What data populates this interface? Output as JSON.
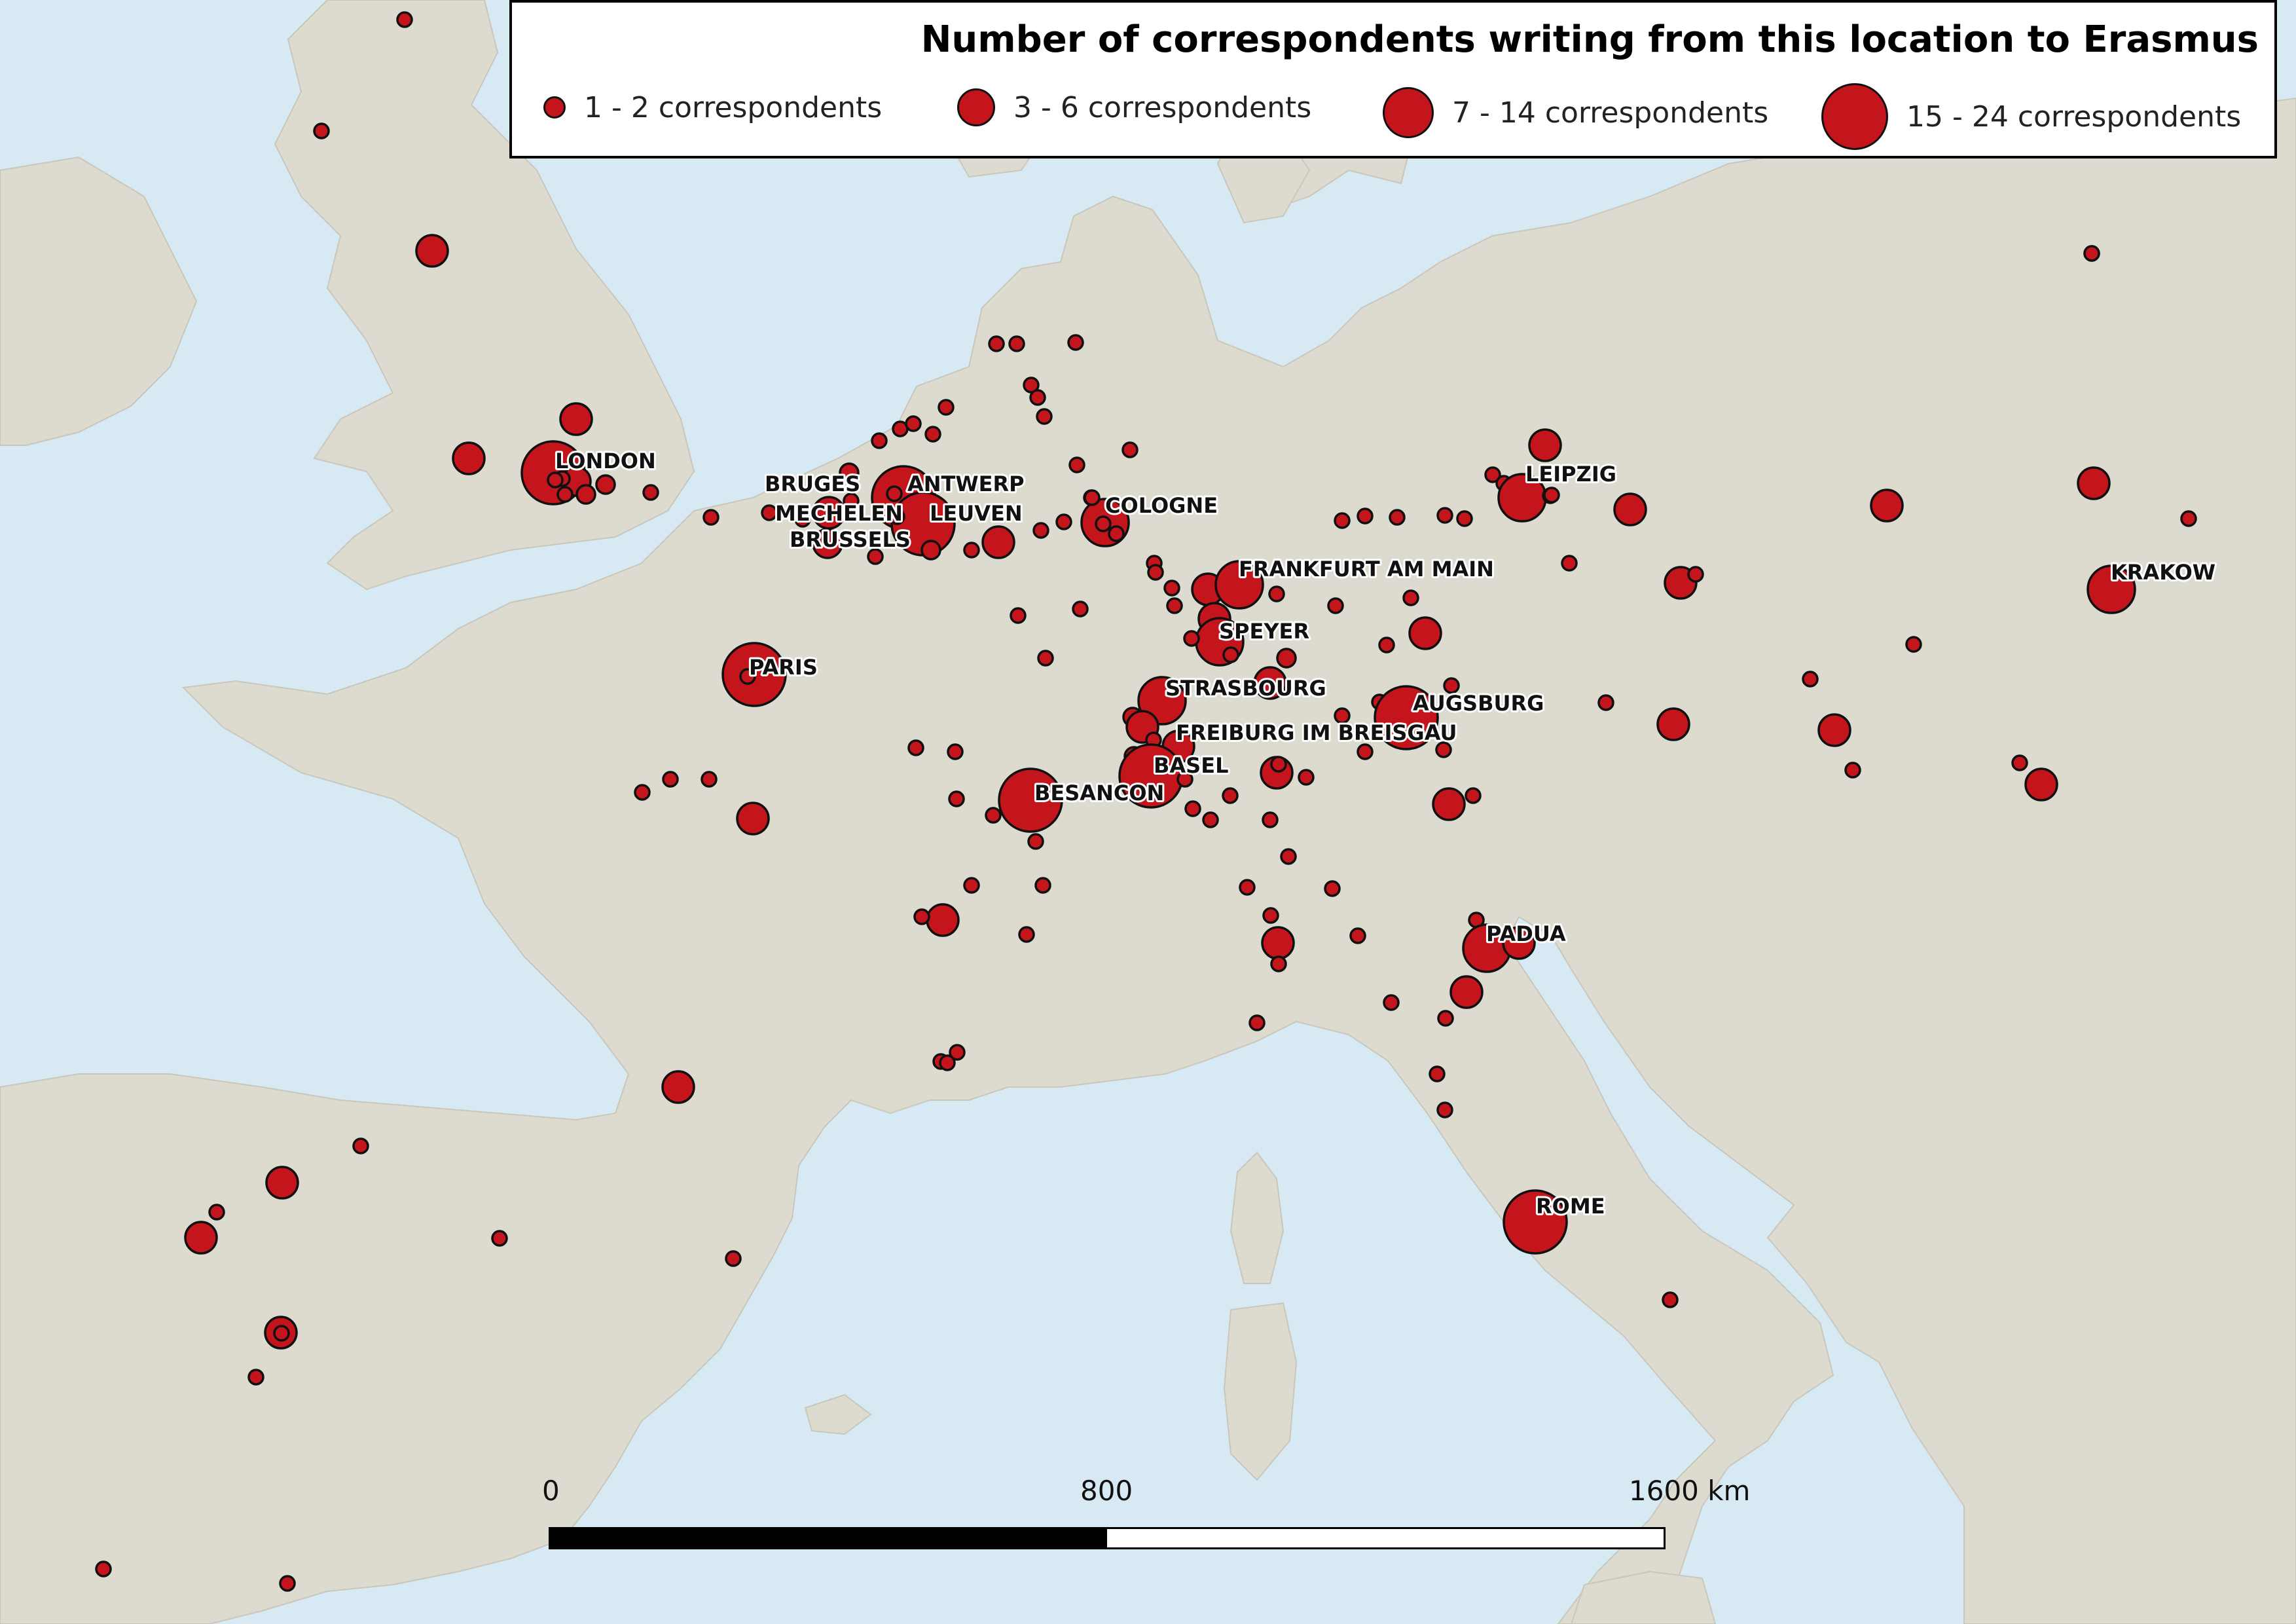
{
  "legend": {
    "title": "Number of correspondents writing from this location to Erasmus",
    "items": [
      {
        "label": "1 - 2 correspondents",
        "diameter": 28
      },
      {
        "label": "3 - 6 correspondents",
        "diameter": 52
      },
      {
        "label": "7 - 14 correspondents",
        "diameter": 72
      },
      {
        "label": "15 - 24 correspondents",
        "diameter": 96
      }
    ]
  },
  "scalebar": {
    "ticks": [
      "0",
      "800",
      "1600 km"
    ]
  },
  "colors": {
    "marker_fill": "#c4141c",
    "marker_stroke": "#111111",
    "land": "#dddbd0",
    "sea": "#d7e9f3"
  },
  "cities": [
    {
      "name": "LONDON",
      "category": 4
    },
    {
      "name": "BRUGES",
      "category": 3
    },
    {
      "name": "ANTWERP",
      "category": 4
    },
    {
      "name": "MECHELEN",
      "category": 2
    },
    {
      "name": "LEUVEN",
      "category": 4
    },
    {
      "name": "BRUSSELS",
      "category": 3
    },
    {
      "name": "COLOGNE",
      "category": 3
    },
    {
      "name": "LEIPZIG",
      "category": 3
    },
    {
      "name": "FRANKFURT AM MAIN",
      "category": 3
    },
    {
      "name": "SPEYER",
      "category": 3
    },
    {
      "name": "PARIS",
      "category": 4
    },
    {
      "name": "STRASBOURG",
      "category": 3
    },
    {
      "name": "AUGSBURG",
      "category": 3
    },
    {
      "name": "FREIBURG IM BREISGAU",
      "category": 3
    },
    {
      "name": "BASEL",
      "category": 4
    },
    {
      "name": "BESANCON",
      "category": 3
    },
    {
      "name": "KRAKOW",
      "category": 3
    },
    {
      "name": "PADUA",
      "category": 3
    },
    {
      "name": "ROME",
      "category": 4
    }
  ]
}
